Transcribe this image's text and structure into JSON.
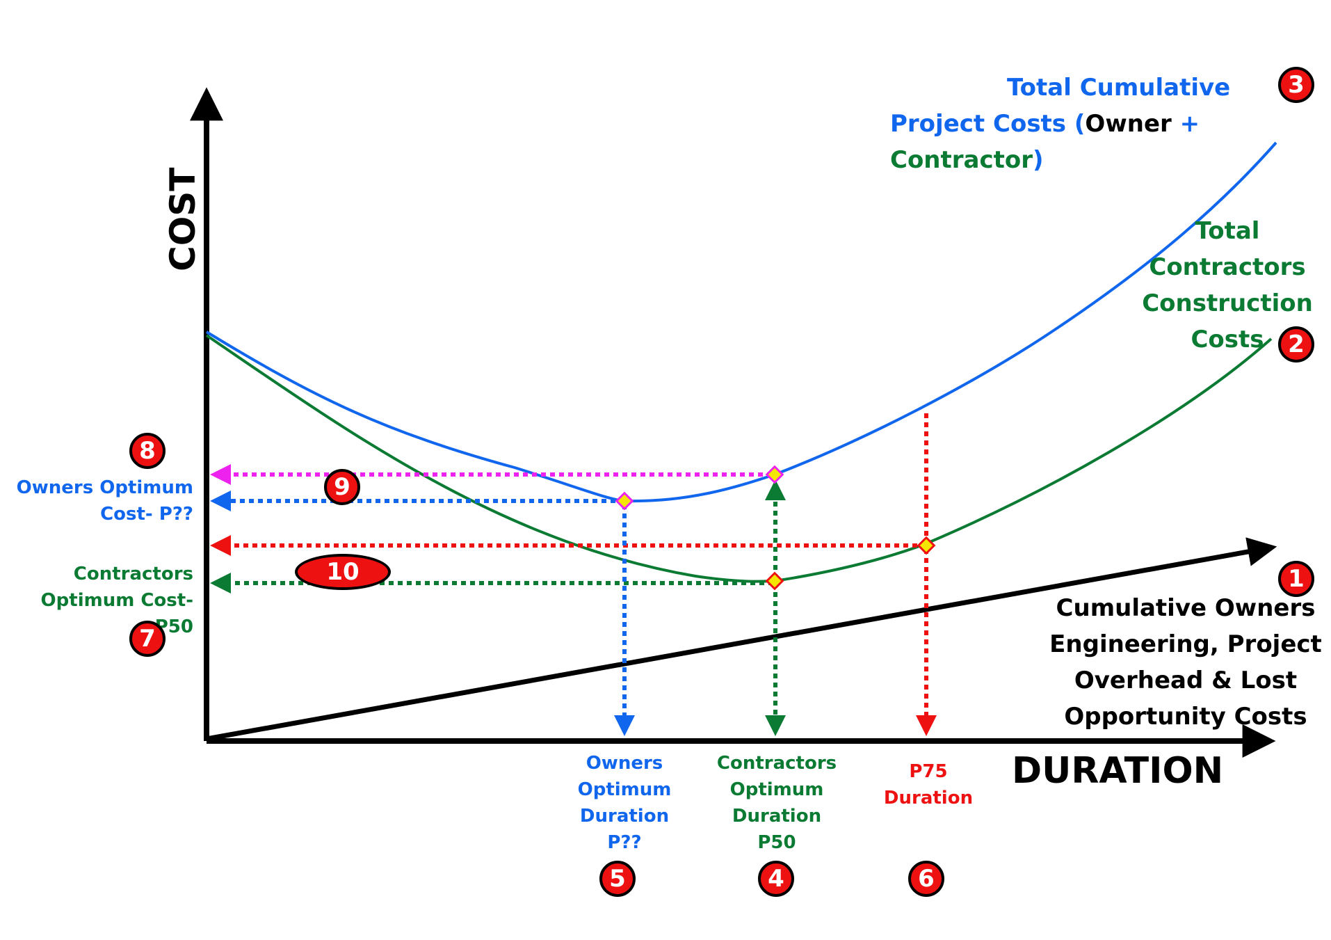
{
  "axes": {
    "y_label": "COST",
    "x_label": "DURATION"
  },
  "curves": {
    "total_project": {
      "title_line1": "Total Cumulative",
      "title_line2_prefix": "Project Costs (",
      "title_owner": "Owner",
      "title_plus": " + ",
      "title_contractor": "Contractor",
      "title_close": ")",
      "color": "#1166ee"
    },
    "contractor": {
      "title_lines": [
        "Total",
        "Contractors",
        "Construction",
        "Costs"
      ],
      "color": "#0b7a33"
    },
    "owner": {
      "title_lines": [
        "Cumulative Owners",
        "Engineering, Project",
        "Overhead & Lost",
        "Opportunity Costs"
      ],
      "color": "#000000"
    }
  },
  "cost_labels": {
    "owners_optimum_line1": "Owners Optimum",
    "owners_optimum_line2": "Cost- P??",
    "contractors_optimum_line1": "Contractors",
    "contractors_optimum_line2": "Optimum Cost- P50"
  },
  "duration_labels": {
    "owners": [
      "Owners",
      "Optimum",
      "Duration",
      "P??"
    ],
    "contractors": [
      "Contractors",
      "Optimum",
      "Duration",
      "P50"
    ],
    "p75": [
      "P75",
      "Duration"
    ]
  },
  "badges": {
    "b1": "1",
    "b2": "2",
    "b3": "3",
    "b4": "4",
    "b5": "5",
    "b6": "6",
    "b7": "7",
    "b8": "8",
    "b9": "9",
    "b10": "10"
  },
  "colors": {
    "blue": "#1166ee",
    "green": "#0b7a33",
    "red": "#ee1111",
    "magenta": "#ee22ee",
    "marker_fill": "#f5e600"
  }
}
